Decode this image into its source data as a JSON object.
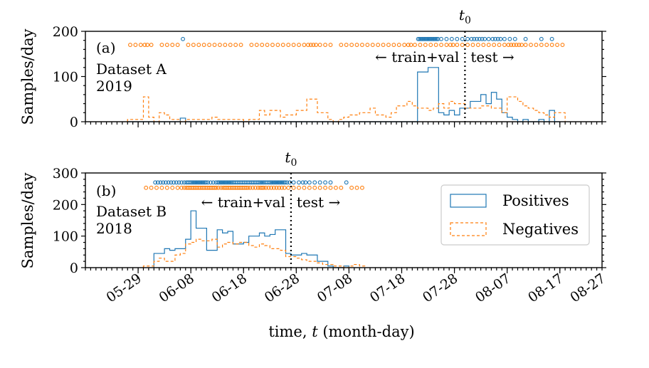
{
  "chart_data": [
    {
      "panel": "a",
      "type": "histogram",
      "panel_label": "(a)",
      "dataset_label": "Dataset A",
      "year_label": "2019",
      "ylabel": "Samples/day",
      "ylim": [
        0,
        200
      ],
      "yticks": [
        "0",
        "100",
        "200"
      ],
      "x_range_days": [
        0,
        98
      ],
      "split_line_x": 72,
      "split_main": "t",
      "split_sub": "0",
      "train_label": "← train+val",
      "test_label": "test →",
      "scatter_y": {
        "positives": 183,
        "negatives": 170
      },
      "series": [
        {
          "name": "Positives",
          "color": "#1f77b4",
          "bins_start": 8,
          "values": [
            0,
            0,
            0,
            0,
            0,
            0,
            0,
            0,
            0,
            0,
            8,
            0,
            0,
            0,
            0,
            0,
            0,
            0,
            0,
            0,
            0,
            0,
            0,
            0,
            0,
            0,
            0,
            0,
            0,
            0,
            0,
            0,
            0,
            0,
            0,
            0,
            0,
            0,
            0,
            0,
            0,
            0,
            0,
            0,
            0,
            0,
            0,
            0,
            0,
            0,
            0,
            0,
            0,
            0,
            0,
            110,
            110,
            120,
            120,
            20,
            15,
            25,
            15,
            30,
            30,
            45,
            45,
            60,
            40,
            65,
            50,
            20,
            10,
            5,
            0,
            5,
            0,
            0,
            5,
            0,
            25,
            0
          ]
        },
        {
          "name": "Negatives",
          "color": "#ff7f0e",
          "bins_start": 8,
          "values": [
            5,
            5,
            5,
            55,
            10,
            0,
            20,
            15,
            5,
            5,
            0,
            5,
            5,
            5,
            5,
            5,
            10,
            5,
            5,
            5,
            5,
            5,
            0,
            5,
            5,
            25,
            15,
            25,
            25,
            10,
            15,
            15,
            25,
            25,
            50,
            50,
            20,
            20,
            5,
            0,
            5,
            10,
            15,
            15,
            20,
            20,
            30,
            15,
            15,
            10,
            20,
            35,
            35,
            45,
            35,
            30,
            30,
            25,
            30,
            40,
            30,
            45,
            40,
            40,
            30,
            30,
            30,
            35,
            35,
            30,
            30,
            20,
            55,
            55,
            45,
            35,
            30,
            25,
            20,
            15,
            10,
            20,
            20
          ]
        }
      ]
    },
    {
      "panel": "b",
      "type": "histogram",
      "panel_label": "(b)",
      "dataset_label": "Dataset B",
      "year_label": "2018",
      "ylabel": "Samples/day",
      "ylim": [
        0,
        300
      ],
      "yticks": [
        "0",
        "100",
        "200",
        "300"
      ],
      "x_range_days": [
        0,
        98
      ],
      "split_line_x": 39,
      "split_main": "t",
      "split_sub": "0",
      "train_label": "← train+val",
      "test_label": "test →",
      "scatter_y": {
        "positives": 270,
        "negatives": 253
      },
      "series": [
        {
          "name": "Positives",
          "color": "#1f77b4",
          "bins_start": 13,
          "values": [
            45,
            45,
            60,
            55,
            60,
            60,
            90,
            180,
            125,
            125,
            55,
            55,
            120,
            110,
            115,
            75,
            75,
            80,
            100,
            100,
            110,
            100,
            105,
            120,
            120,
            45,
            40,
            40,
            45,
            40,
            40,
            20,
            20,
            5,
            0,
            0,
            5
          ]
        },
        {
          "name": "Negatives",
          "color": "#ff7f0e",
          "bins_start": 11,
          "values": [
            5,
            5,
            20,
            30,
            20,
            20,
            40,
            45,
            75,
            80,
            90,
            85,
            85,
            90,
            65,
            75,
            80,
            75,
            80,
            80,
            70,
            65,
            75,
            70,
            60,
            60,
            55,
            35,
            35,
            30,
            25,
            20,
            20,
            15,
            10,
            10,
            5,
            5,
            0,
            5,
            10,
            5
          ]
        }
      ]
    }
  ],
  "x_axis": {
    "label_prefix": "time, ",
    "label_var": "t",
    "label_suffix": " (month-day)",
    "tick_labels": [
      "05-29",
      "06-08",
      "06-18",
      "06-28",
      "07-08",
      "07-18",
      "07-28",
      "08-07",
      "08-17",
      "08-27"
    ],
    "tick_days": [
      10,
      20,
      30,
      40,
      50,
      60,
      70,
      80,
      90,
      100
    ]
  },
  "legend": {
    "position": "right",
    "items": [
      {
        "label": "Positives",
        "color": "#1f77b4",
        "style": "solid"
      },
      {
        "label": "Negatives",
        "color": "#ff7f0e",
        "style": "dashed"
      }
    ]
  }
}
